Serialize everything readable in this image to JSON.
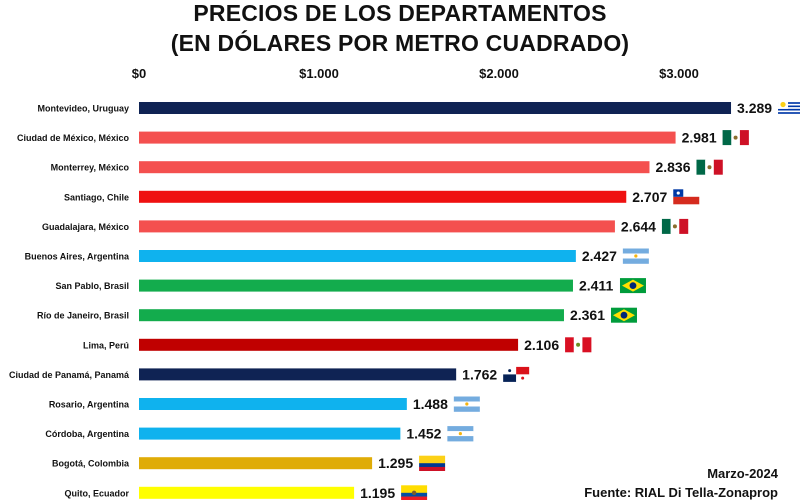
{
  "chart_data": {
    "type": "bar",
    "orientation": "horizontal",
    "title": "PRECIOS DE LOS DEPARTAMENTOS",
    "subtitle": "(EN DÓLARES POR METRO CUADRADO)",
    "x_ticks": [
      {
        "value": 0,
        "label": "$0"
      },
      {
        "value": 1000,
        "label": "$1.000"
      },
      {
        "value": 2000,
        "label": "$2.000"
      },
      {
        "value": 3000,
        "label": "$3.000"
      }
    ],
    "xlim": [
      0,
      3650
    ],
    "grid": false,
    "categories": [
      "Montevideo, Uruguay",
      "Ciudad de México, México",
      "Monterrey, México",
      "Santiago, Chile",
      "Guadalajara, México",
      "Buenos Aires, Argentina",
      "San Pablo, Brasil",
      "Río de Janeiro, Brasil",
      "Lima, Perú",
      "Ciudad de Panamá, Panamá",
      "Rosario, Argentina",
      "Córdoba, Argentina",
      "Bogotá, Colombia",
      "Quito, Ecuador"
    ],
    "values": [
      3289,
      2981,
      2836,
      2707,
      2644,
      2427,
      2411,
      2361,
      2106,
      1762,
      1488,
      1452,
      1295,
      1195
    ],
    "value_labels": [
      "3.289",
      "2.981",
      "2.836",
      "2.707",
      "2.644",
      "2.427",
      "2.411",
      "2.361",
      "2.106",
      "1.762",
      "1.488",
      "1.452",
      "1.295",
      "1.195"
    ],
    "colors": [
      "#0f2354",
      "#f4504f",
      "#f4504f",
      "#ef1111",
      "#f4504f",
      "#0fb2ee",
      "#13ac4d",
      "#13ac4d",
      "#c00000",
      "#0f2354",
      "#0fb2ee",
      "#0fb2ee",
      "#dfac07",
      "#ffff00"
    ],
    "flags": [
      "uruguay",
      "mexico",
      "mexico",
      "chile",
      "mexico",
      "argentina",
      "brazil",
      "brazil",
      "peru",
      "panama",
      "argentina",
      "argentina",
      "colombia",
      "ecuador"
    ]
  },
  "footer": {
    "date": "Marzo-2024",
    "source": "Fuente: RIAL Di Tella-Zonaprop"
  }
}
